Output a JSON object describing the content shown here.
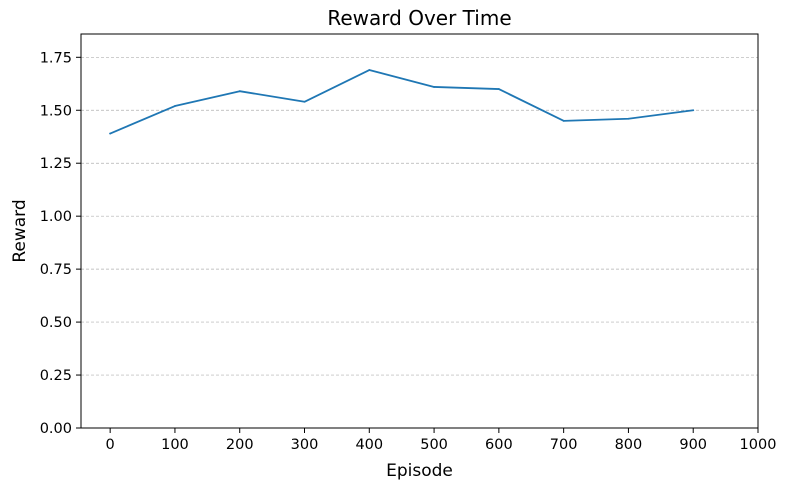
{
  "chart_data": {
    "type": "line",
    "title": "Reward Over Time",
    "xlabel": "Episode",
    "ylabel": "Reward",
    "xlim": [
      -45,
      1000
    ],
    "ylim": [
      0,
      1.86
    ],
    "xticks": [
      0,
      100,
      200,
      300,
      400,
      500,
      600,
      700,
      800,
      900,
      1000
    ],
    "xtick_labels": [
      "0",
      "100",
      "200",
      "300",
      "400",
      "500",
      "600",
      "700",
      "800",
      "900",
      "1000"
    ],
    "yticks": [
      0,
      0.25,
      0.5,
      0.75,
      1.0,
      1.25,
      1.5,
      1.75
    ],
    "ytick_labels": [
      "0.00",
      "0.25",
      "0.50",
      "0.75",
      "1.00",
      "1.25",
      "1.50",
      "1.75"
    ],
    "grid": "horizontal dashed",
    "series": [
      {
        "color": "#1f77b4",
        "x": [
          0,
          100,
          200,
          300,
          400,
          500,
          600,
          700,
          800,
          900
        ],
        "y": [
          1.39,
          1.52,
          1.59,
          1.54,
          1.69,
          1.61,
          1.6,
          1.45,
          1.46,
          1.5
        ]
      }
    ]
  }
}
